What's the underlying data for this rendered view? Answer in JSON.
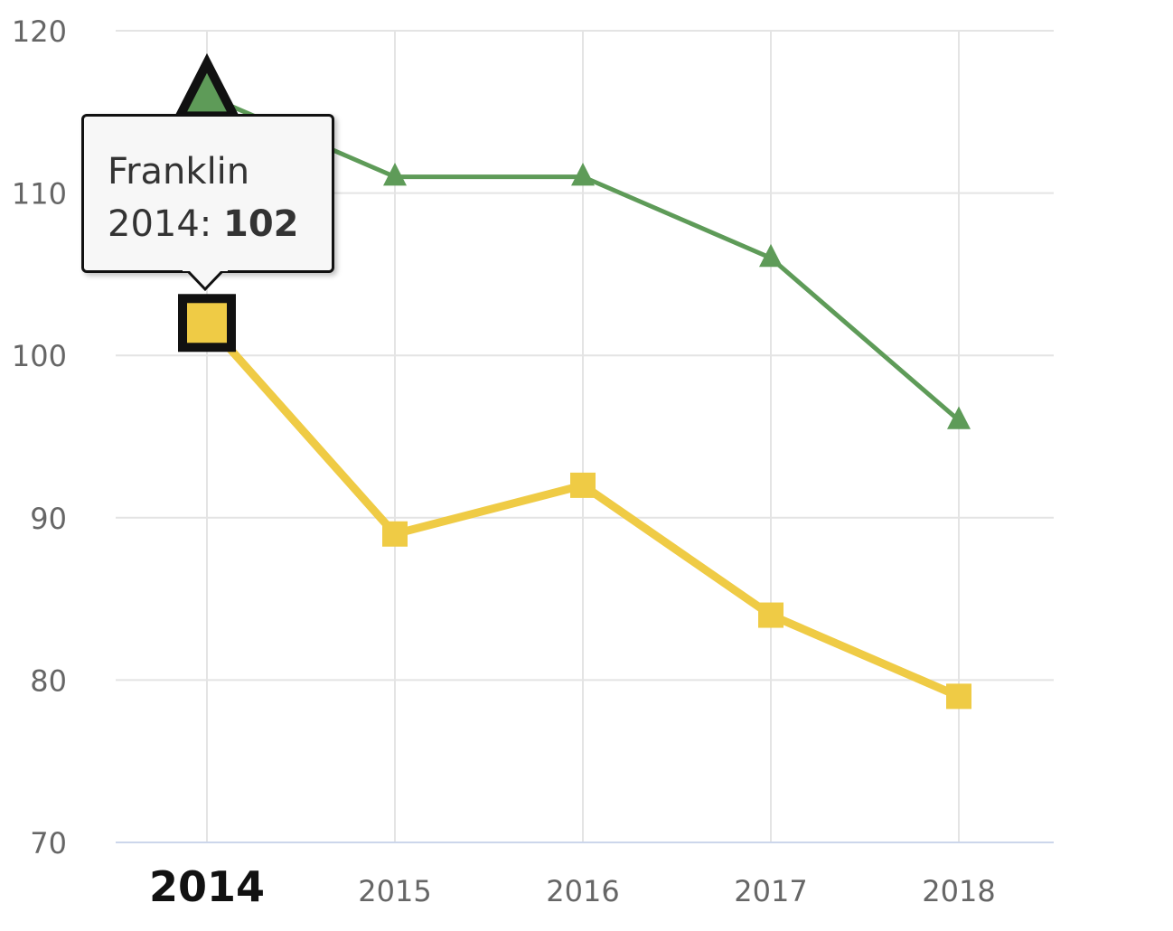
{
  "chart_data": {
    "type": "line",
    "categories": [
      "2014",
      "2015",
      "2016",
      "2017",
      "2018"
    ],
    "series": [
      {
        "name": "",
        "color": "#5e9b58",
        "marker": "triangle",
        "values": [
          116,
          111,
          111,
          106,
          96
        ]
      },
      {
        "name": "Franklin",
        "color": "#efcb45",
        "marker": "square",
        "values": [
          102,
          89,
          92,
          84,
          79
        ]
      }
    ],
    "title": "",
    "xlabel": "",
    "ylabel": "",
    "ylim": [
      70,
      120
    ],
    "yticks": [
      "70",
      "80",
      "90",
      "100",
      "110",
      "120"
    ],
    "grid": true,
    "highlighted_category": "2014"
  },
  "tooltip": {
    "series": "Franklin",
    "category": "2014",
    "separator": ":",
    "value": "102"
  }
}
